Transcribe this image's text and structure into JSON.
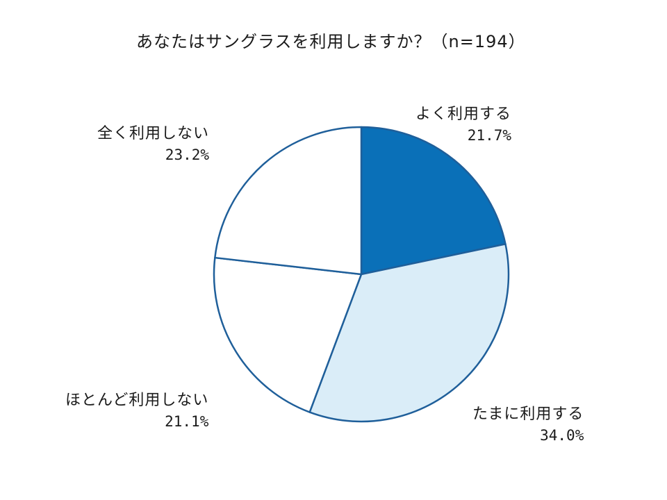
{
  "chart_data": {
    "type": "pie",
    "title": "あなたはサングラスを利用しますか？（n=194）",
    "start_angle_deg": 0,
    "direction": "clockwise",
    "slices": [
      {
        "label": "よく利用する",
        "value": 21.7,
        "value_label": "21.7%",
        "color": "#0a70b8"
      },
      {
        "label": "たまに利用する",
        "value": 34.0,
        "value_label": "34.0%",
        "color": "#daedf8"
      },
      {
        "label": "ほとんど利用しない",
        "value": 21.1,
        "value_label": "21.1%",
        "color": "#ffffff"
      },
      {
        "label": "全く利用しない",
        "value": 23.2,
        "value_label": "23.2%",
        "color": "#ffffff"
      }
    ],
    "stroke_color": "#1f5f9a",
    "legend": "none"
  }
}
